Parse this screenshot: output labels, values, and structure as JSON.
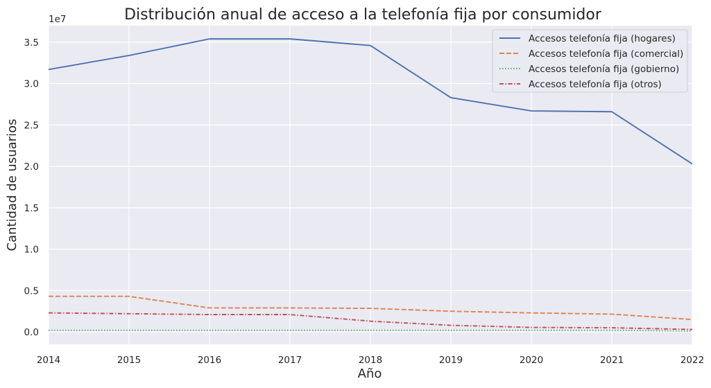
{
  "chart_data": {
    "type": "line",
    "title": "Distribución anual de acceso a la telefonía fija por consumidor",
    "xlabel": "Año",
    "ylabel": "Cantidad de usuarios",
    "y_offset_label": "1e7",
    "x": [
      2014,
      2015,
      2016,
      2017,
      2018,
      2019,
      2020,
      2021,
      2022
    ],
    "x_ticks": [
      "2014",
      "2015",
      "2016",
      "2017",
      "2018",
      "2019",
      "2020",
      "2021",
      "2022"
    ],
    "y_ticks": [
      "0.0",
      "0.5",
      "1.0",
      "1.5",
      "2.0",
      "2.5",
      "3.0",
      "3.5"
    ],
    "y_tick_values": [
      0,
      0.5,
      1.0,
      1.5,
      2.0,
      2.5,
      3.0,
      3.5
    ],
    "xlim": [
      2014,
      2022
    ],
    "ylim": [
      -0.15,
      3.7
    ],
    "grid": true,
    "legend_position": "top-right",
    "series": [
      {
        "name": "Accesos telefonía fija (hogares)",
        "color": "#4c72b0",
        "dash": "solid",
        "values": [
          3.17,
          3.34,
          3.54,
          3.54,
          3.46,
          2.83,
          2.67,
          2.66,
          2.03
        ]
      },
      {
        "name": "Accesos telefonía fija (comercial)",
        "color": "#dd8452",
        "dash": "dashed",
        "values": [
          0.43,
          0.43,
          0.29,
          0.29,
          0.285,
          0.25,
          0.23,
          0.215,
          0.15
        ]
      },
      {
        "name": "Accesos telefonía fija (gobierno)",
        "color": "#55a868",
        "dash": "dotted",
        "values": [
          0.02,
          0.02,
          0.02,
          0.02,
          0.02,
          0.02,
          0.02,
          0.02,
          0.01
        ]
      },
      {
        "name": "Accesos telefonía fija (otros)",
        "color": "#c44e52",
        "dash": "dashdot",
        "values": [
          0.23,
          0.22,
          0.21,
          0.21,
          0.13,
          0.08,
          0.055,
          0.05,
          0.03
        ]
      }
    ],
    "background_color": "#eaeaf2",
    "grid_color": "#ffffff"
  }
}
